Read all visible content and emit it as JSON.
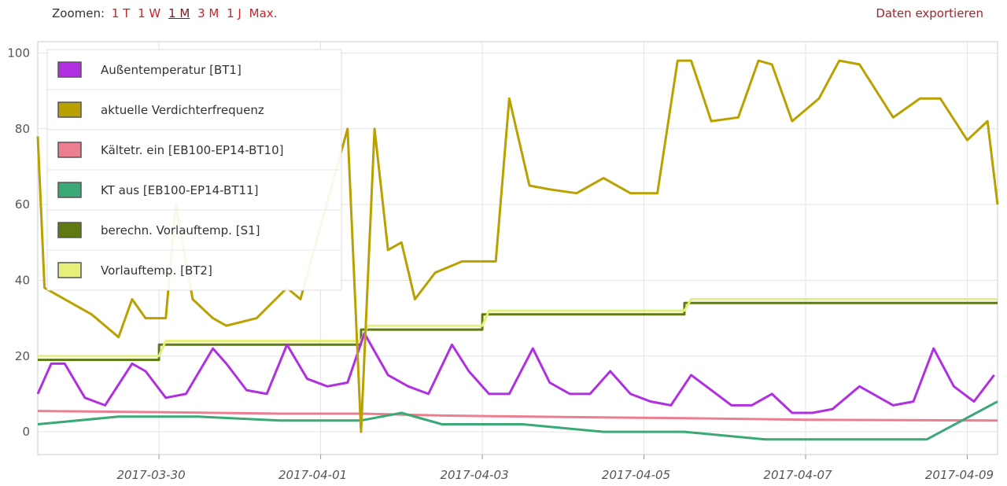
{
  "toolbar": {
    "zoom_label": "Zoomen:",
    "zoom_options": [
      "1 T",
      "1 W",
      "1 M",
      "3 M",
      "1 J",
      "Max."
    ],
    "zoom_active": "1 M",
    "export_label": "Daten exportieren"
  },
  "chart_data": {
    "type": "line",
    "x_type": "date",
    "xlim": [
      "2017-03-28T12:00",
      "2017-04-09T09:00"
    ],
    "ylim": [
      -6,
      103
    ],
    "yticks": [
      0,
      20,
      40,
      60,
      80,
      100
    ],
    "xticks": [
      "2017-03-30",
      "2017-04-01",
      "2017-04-03",
      "2017-04-05",
      "2017-04-07",
      "2017-04-09"
    ],
    "grid": true,
    "legend_position": "top-left",
    "series": [
      {
        "name": "Außentemperatur [BT1]",
        "color": "#b02fe0",
        "x": [
          "2017-03-28T12:00",
          "2017-03-28T16:00",
          "2017-03-28T20:00",
          "2017-03-29T02:00",
          "2017-03-29T08:00",
          "2017-03-29T16:00",
          "2017-03-29T20:00",
          "2017-03-30T02:00",
          "2017-03-30T08:00",
          "2017-03-30T16:00",
          "2017-03-30T20:00",
          "2017-03-31T02:00",
          "2017-03-31T08:00",
          "2017-03-31T14:00",
          "2017-03-31T20:00",
          "2017-04-01T02:00",
          "2017-04-01T08:00",
          "2017-04-01T13:00",
          "2017-04-01T20:00",
          "2017-04-02T02:00",
          "2017-04-02T08:00",
          "2017-04-02T15:00",
          "2017-04-02T20:00",
          "2017-04-03T02:00",
          "2017-04-03T08:00",
          "2017-04-03T15:00",
          "2017-04-03T20:00",
          "2017-04-04T02:00",
          "2017-04-04T08:00",
          "2017-04-04T14:00",
          "2017-04-04T20:00",
          "2017-04-05T02:00",
          "2017-04-05T08:00",
          "2017-04-05T14:00",
          "2017-04-05T20:00",
          "2017-04-06T02:00",
          "2017-04-06T08:00",
          "2017-04-06T14:00",
          "2017-04-06T20:00",
          "2017-04-07T02:00",
          "2017-04-07T08:00",
          "2017-04-07T16:00",
          "2017-04-07T20:00",
          "2017-04-08T02:00",
          "2017-04-08T08:00",
          "2017-04-08T14:00",
          "2017-04-08T20:00",
          "2017-04-09T02:00",
          "2017-04-09T08:00"
        ],
        "y": [
          10,
          18,
          18,
          9,
          7,
          18,
          16,
          9,
          10,
          22,
          18,
          11,
          10,
          23,
          14,
          12,
          13,
          26,
          15,
          12,
          10,
          23,
          16,
          10,
          10,
          22,
          13,
          10,
          10,
          16,
          10,
          8,
          7,
          15,
          11,
          7,
          7,
          10,
          5,
          5,
          6,
          12,
          10,
          7,
          8,
          22,
          12,
          8,
          15
        ]
      },
      {
        "name": "aktuelle Verdichterfrequenz",
        "color": "#b9a100",
        "x": [
          "2017-03-28T12:00",
          "2017-03-28T14:00",
          "2017-03-28T18:00",
          "2017-03-29T04:00",
          "2017-03-29T12:00",
          "2017-03-29T16:00",
          "2017-03-29T20:00",
          "2017-03-30T02:00",
          "2017-03-30T05:00",
          "2017-03-30T10:00",
          "2017-03-30T16:00",
          "2017-03-30T20:00",
          "2017-03-31T05:00",
          "2017-03-31T14:00",
          "2017-03-31T18:00",
          "2017-04-01T08:00",
          "2017-04-01T12:00",
          "2017-04-01T16:00",
          "2017-04-01T20:00",
          "2017-04-02T00:00",
          "2017-04-02T04:00",
          "2017-04-02T10:00",
          "2017-04-02T18:00",
          "2017-04-03T04:00",
          "2017-04-03T08:00",
          "2017-04-03T14:00",
          "2017-04-03T20:00",
          "2017-04-04T04:00",
          "2017-04-04T12:00",
          "2017-04-04T20:00",
          "2017-04-05T04:00",
          "2017-04-05T10:00",
          "2017-04-05T14:00",
          "2017-04-05T20:00",
          "2017-04-06T04:00",
          "2017-04-06T10:00",
          "2017-04-06T14:00",
          "2017-04-06T20:00",
          "2017-04-07T04:00",
          "2017-04-07T10:00",
          "2017-04-07T16:00",
          "2017-04-08T02:00",
          "2017-04-08T10:00",
          "2017-04-08T16:00",
          "2017-04-09T00:00",
          "2017-04-09T06:00",
          "2017-04-09T09:00"
        ],
        "y": [
          78,
          38,
          36,
          31,
          25,
          35,
          30,
          30,
          60,
          35,
          30,
          28,
          30,
          38,
          35,
          80,
          0,
          80,
          48,
          50,
          35,
          42,
          45,
          45,
          88,
          65,
          64,
          63,
          67,
          63,
          63,
          98,
          98,
          82,
          83,
          98,
          97,
          82,
          88,
          98,
          97,
          83,
          88,
          88,
          77,
          82,
          60
        ]
      },
      {
        "name": "Kältetr. ein [EB100-EP14-BT10]",
        "color": "#ec7f8f",
        "x": [
          "2017-03-28T12:00",
          "2017-03-30T00:00",
          "2017-03-31T12:00",
          "2017-04-01T12:00",
          "2017-04-02T12:00",
          "2017-04-04T00:00",
          "2017-04-05T12:00",
          "2017-04-07T00:00",
          "2017-04-09T09:00"
        ],
        "y": [
          5.5,
          5.2,
          4.8,
          4.8,
          4.3,
          3.9,
          3.6,
          3.2,
          3.0
        ]
      },
      {
        "name": "KT aus [EB100-EP14-BT11]",
        "color": "#3aa877",
        "x": [
          "2017-03-28T12:00",
          "2017-03-29T12:00",
          "2017-03-30T12:00",
          "2017-03-31T12:00",
          "2017-04-01T12:00",
          "2017-04-02T00:00",
          "2017-04-02T12:00",
          "2017-04-03T12:00",
          "2017-04-04T12:00",
          "2017-04-05T12:00",
          "2017-04-06T12:00",
          "2017-04-07T12:00",
          "2017-04-08T12:00",
          "2017-04-09T09:00"
        ],
        "y": [
          2,
          4,
          4,
          3,
          3,
          5,
          2,
          2,
          0,
          0,
          -2,
          -2,
          -2,
          8
        ]
      },
      {
        "name": "berechn. Vorlauftemp. [S1]",
        "color": "#5f7a10",
        "x": [
          "2017-03-28T12:00",
          "2017-03-30T00:00",
          "2017-03-30T00:01",
          "2017-04-01T12:00",
          "2017-04-01T12:01",
          "2017-04-03T00:00",
          "2017-04-03T00:01",
          "2017-04-05T12:00",
          "2017-04-05T12:01",
          "2017-04-09T09:00"
        ],
        "y": [
          19,
          19,
          23,
          23,
          27,
          27,
          31,
          31,
          34,
          34
        ]
      },
      {
        "name": "Vorlauftemp. [BT2]",
        "color": "#e4f07a",
        "x": [
          "2017-03-28T12:00",
          "2017-03-30T00:00",
          "2017-03-30T02:00",
          "2017-04-01T12:00",
          "2017-04-01T14:00",
          "2017-04-03T00:00",
          "2017-04-03T02:00",
          "2017-04-05T12:00",
          "2017-04-05T14:00",
          "2017-04-09T09:00"
        ],
        "y": [
          20,
          20,
          24,
          24,
          28,
          28,
          32,
          32,
          35,
          35
        ]
      }
    ]
  }
}
